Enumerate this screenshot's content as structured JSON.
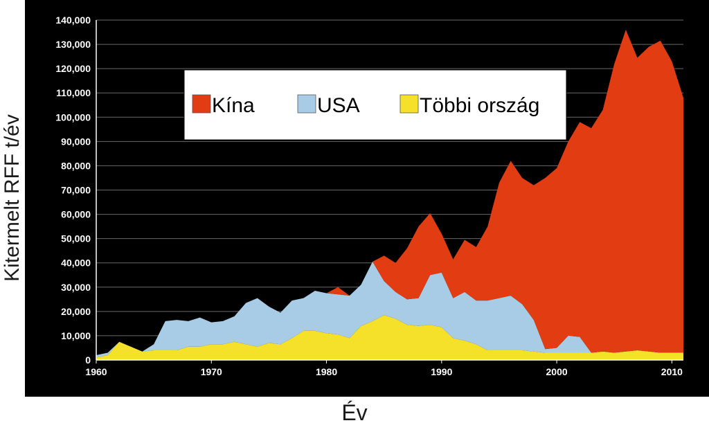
{
  "chart_data": {
    "type": "area",
    "stacked": true,
    "title": "",
    "xlabel": "Év",
    "ylabel": "Kitermelt RFF t/év",
    "xlim": [
      1960,
      2011
    ],
    "ylim": [
      0,
      140000
    ],
    "x_ticks": [
      "1960",
      "1970",
      "1980",
      "1990",
      "2000",
      "2010"
    ],
    "y_ticks": [
      "0",
      "10,000",
      "20,000",
      "30,000",
      "40,000",
      "50,000",
      "60,000",
      "70,000",
      "80,000",
      "90,000",
      "100,000",
      "110,000",
      "120,000",
      "130,000",
      "140,000"
    ],
    "grid": "horizontal",
    "legend_position": "top-center",
    "x": [
      1960,
      1961,
      1962,
      1963,
      1964,
      1965,
      1966,
      1967,
      1968,
      1969,
      1970,
      1971,
      1972,
      1973,
      1974,
      1975,
      1976,
      1977,
      1978,
      1979,
      1980,
      1981,
      1982,
      1983,
      1984,
      1985,
      1986,
      1987,
      1988,
      1989,
      1990,
      1991,
      1992,
      1993,
      1994,
      1995,
      1996,
      1997,
      1998,
      1999,
      2000,
      2001,
      2002,
      2003,
      2004,
      2005,
      2006,
      2007,
      2008,
      2009,
      2010,
      2011
    ],
    "series": [
      {
        "name": "Többi ország",
        "color": "#f5e12a",
        "values": [
          1000,
          2000,
          7500,
          5500,
          3500,
          4000,
          4000,
          4000,
          5500,
          5500,
          6500,
          6500,
          7500,
          6500,
          5500,
          7000,
          6500,
          9000,
          12000,
          12000,
          11000,
          10500,
          9000,
          14000,
          16000,
          18500,
          17000,
          14500,
          14000,
          14500,
          13500,
          9000,
          8000,
          6500,
          4000,
          4000,
          4000,
          4000,
          3500,
          3000,
          3000,
          3000,
          3000,
          3000,
          3500,
          3000,
          3500,
          4000,
          3500,
          3000,
          3000,
          3000
        ]
      },
      {
        "name": "USA",
        "color": "#a8cce6",
        "values": [
          1000,
          1000,
          0,
          0,
          0,
          2500,
          12000,
          12500,
          10500,
          12000,
          9000,
          9500,
          10500,
          17000,
          20000,
          15000,
          13000,
          15500,
          13500,
          16500,
          16500,
          16500,
          17500,
          17000,
          24500,
          14000,
          11000,
          10500,
          11500,
          20500,
          22500,
          16500,
          20000,
          18000,
          20500,
          21500,
          22500,
          19000,
          13000,
          1500,
          2000,
          7000,
          6500,
          0,
          0,
          0,
          0,
          0,
          0,
          0,
          0,
          0
        ]
      },
      {
        "name": "Kína",
        "color": "#e23d12",
        "values": [
          0,
          0,
          0,
          0,
          0,
          0,
          0,
          0,
          0,
          0,
          0,
          0,
          0,
          0,
          0,
          0,
          0,
          0,
          0,
          0,
          0,
          3000,
          0,
          0,
          0,
          10500,
          12000,
          21000,
          29500,
          25500,
          16000,
          16000,
          21500,
          22000,
          30500,
          47500,
          55500,
          52000,
          55500,
          70500,
          74000,
          80000,
          88500,
          92500,
          99500,
          119000,
          132500,
          120500,
          125500,
          128500,
          120000,
          105000
        ]
      }
    ]
  }
}
